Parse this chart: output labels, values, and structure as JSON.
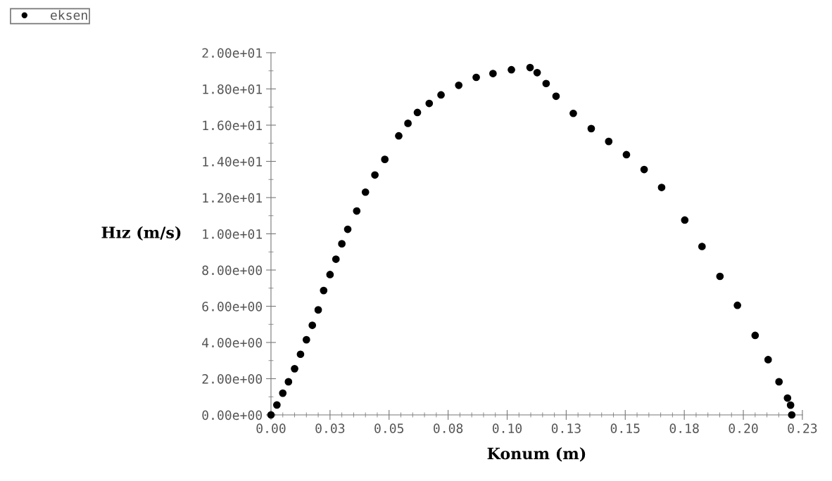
{
  "chart_data": {
    "type": "scatter",
    "xlabel": "Konum (m)",
    "ylabel": "Hız (m/s)",
    "series": [
      {
        "name": "eksen",
        "color": "#000000",
        "x": [
          0,
          0.0025,
          0.005,
          0.0074,
          0.01,
          0.0125,
          0.015,
          0.0175,
          0.02,
          0.0223,
          0.025,
          0.0275,
          0.03,
          0.0325,
          0.0363,
          0.04,
          0.044,
          0.0482,
          0.0541,
          0.058,
          0.062,
          0.067,
          0.072,
          0.0795,
          0.0869,
          0.094,
          0.1018,
          0.1097,
          0.1127,
          0.1165,
          0.1207,
          0.128,
          0.1356,
          0.143,
          0.1505,
          0.158,
          0.1654,
          0.1752,
          0.1825,
          0.1901,
          0.1975,
          0.205,
          0.2105,
          0.2151,
          0.2187,
          0.22,
          0.2205
        ],
        "values": [
          0,
          0.55,
          1.2,
          1.83,
          2.55,
          3.35,
          4.15,
          4.95,
          5.8,
          6.87,
          7.75,
          8.6,
          9.45,
          10.25,
          11.26,
          12.3,
          13.25,
          14.11,
          15.41,
          16.1,
          16.7,
          17.2,
          17.67,
          18.2,
          18.64,
          18.85,
          19.06,
          19.18,
          18.9,
          18.3,
          17.6,
          16.65,
          15.81,
          15.1,
          14.37,
          13.55,
          12.56,
          10.76,
          9.3,
          7.65,
          6.05,
          4.39,
          3.05,
          1.83,
          0.93,
          0.54,
          0
        ]
      }
    ],
    "xlim": [
      0,
      0.225
    ],
    "xticks": [
      {
        "value": 0,
        "label": "0.00"
      },
      {
        "value": 0.025,
        "label": "0.03"
      },
      {
        "value": 0.05,
        "label": "0.05"
      },
      {
        "value": 0.075,
        "label": "0.08"
      },
      {
        "value": 0.1,
        "label": "0.10"
      },
      {
        "value": 0.125,
        "label": "0.13"
      },
      {
        "value": 0.15,
        "label": "0.15"
      },
      {
        "value": 0.175,
        "label": "0.18"
      },
      {
        "value": 0.2,
        "label": "0.20"
      },
      {
        "value": 0.225,
        "label": "0.23"
      }
    ],
    "ylim": [
      0,
      20
    ],
    "yticks": [
      {
        "value": 0,
        "label": "0.00e+00"
      },
      {
        "value": 2,
        "label": "2.00e+00"
      },
      {
        "value": 4,
        "label": "4.00e+00"
      },
      {
        "value": 6,
        "label": "6.00e+00"
      },
      {
        "value": 8,
        "label": "8.00e+00"
      },
      {
        "value": 10,
        "label": "1.00e+01"
      },
      {
        "value": 12,
        "label": "1.20e+01"
      },
      {
        "value": 14,
        "label": "1.40e+01"
      },
      {
        "value": 16,
        "label": "1.60e+01"
      },
      {
        "value": 18,
        "label": "1.80e+01"
      },
      {
        "value": 20,
        "label": "2.00e+01"
      }
    ],
    "marker": "circle",
    "legend": "top left",
    "grid": false
  }
}
